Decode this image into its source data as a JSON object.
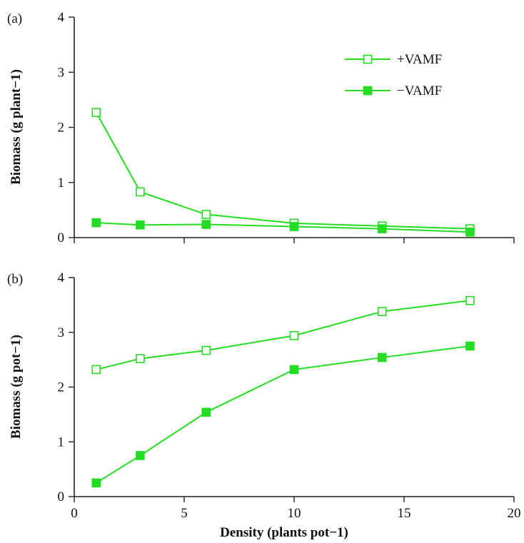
{
  "chart_data": [
    {
      "type": "line",
      "panel_label": "(a)",
      "ylabel": "Biomass (g plant−1)",
      "xlabel": "",
      "xlim": [
        0,
        20
      ],
      "ylim": [
        0,
        4
      ],
      "xticks": [
        0,
        5,
        10,
        15,
        20
      ],
      "yticks": [
        0,
        1,
        2,
        3,
        4
      ],
      "x_tick_labels_shown": false,
      "legend": "top-right",
      "series": [
        {
          "name": "+VAMF",
          "marker": "open-square",
          "color": "#22dd22",
          "x": [
            1,
            3,
            6,
            10,
            14,
            18
          ],
          "y": [
            2.27,
            0.83,
            0.42,
            0.26,
            0.21,
            0.16
          ]
        },
        {
          "name": "−VAMF",
          "marker": "filled-square",
          "color": "#22dd22",
          "x": [
            1,
            3,
            6,
            10,
            14,
            18
          ],
          "y": [
            0.27,
            0.23,
            0.24,
            0.2,
            0.16,
            0.1
          ]
        }
      ]
    },
    {
      "type": "line",
      "panel_label": "(b)",
      "ylabel": "Biomass (g pot−1)",
      "xlabel": "Density (plants pot−1)",
      "xlim": [
        0,
        20
      ],
      "ylim": [
        0,
        4
      ],
      "xticks": [
        0,
        5,
        10,
        15,
        20
      ],
      "yticks": [
        0,
        1,
        2,
        3,
        4
      ],
      "x_tick_labels_shown": true,
      "series": [
        {
          "name": "+VAMF",
          "marker": "open-square",
          "color": "#22dd22",
          "x": [
            1,
            3,
            6,
            10,
            14,
            18
          ],
          "y": [
            2.32,
            2.52,
            2.67,
            2.94,
            3.38,
            3.58
          ]
        },
        {
          "name": "−VAMF",
          "marker": "filled-square",
          "color": "#22dd22",
          "x": [
            1,
            3,
            6,
            10,
            14,
            18
          ],
          "y": [
            0.25,
            0.75,
            1.54,
            2.32,
            2.54,
            2.75
          ]
        }
      ]
    }
  ]
}
